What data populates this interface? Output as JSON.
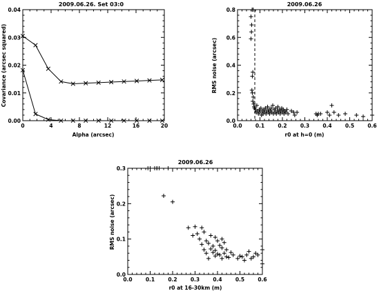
{
  "chart_data": [
    {
      "type": "line",
      "title": "2009.06.26. Set 03:0",
      "xlabel": "Alpha (arcsec)",
      "ylabel": "Covariance (arcsec squared)",
      "xlim": [
        0,
        20
      ],
      "ylim": [
        0,
        0.04
      ],
      "xticks": [
        "0",
        "4",
        "8",
        "12",
        "16",
        "20"
      ],
      "yticks": [
        "0.00",
        "0.01",
        "0.02",
        "0.03",
        "0.04"
      ],
      "marker": "x",
      "series": [
        {
          "x": [
            0,
            1.8,
            3.6,
            5.4,
            7.1,
            8.9,
            10.7,
            12.5,
            14.3,
            16.1,
            17.9,
            19.7
          ],
          "values": [
            0.0305,
            0.0272,
            0.0187,
            0.0141,
            0.0133,
            0.0135,
            0.0137,
            0.0139,
            0.0141,
            0.0143,
            0.0145,
            0.0147
          ]
        },
        {
          "x": [
            0,
            1.8,
            3.6,
            5.4,
            7.1,
            8.9,
            10.7,
            12.5,
            14.3,
            16.1,
            17.9,
            19.7
          ],
          "values": [
            0.0182,
            0.0024,
            0.0004,
            0.0,
            0.0,
            0.0,
            0.0,
            0.0,
            0.0,
            0.0,
            0.0,
            0.0
          ]
        }
      ]
    },
    {
      "type": "scatter",
      "title": "2009.06.26",
      "xlabel": "r0 at h=0 (m)",
      "ylabel": "RMS noise (arcsec)",
      "xlim": [
        0,
        0.6
      ],
      "ylim": [
        0,
        0.8
      ],
      "xticks": [
        "0.0",
        "0.1",
        "0.2",
        "0.3",
        "0.4",
        "0.5",
        "0.6"
      ],
      "yticks": [
        "0.0",
        "0.2",
        "0.4",
        "0.6",
        "0.8"
      ],
      "marker": "+",
      "vline": 0.077,
      "points": [
        [
          0.065,
          0.8
        ],
        [
          0.07,
          0.8
        ],
        [
          0.06,
          0.75
        ],
        [
          0.063,
          0.69
        ],
        [
          0.062,
          0.64
        ],
        [
          0.06,
          0.59
        ],
        [
          0.068,
          0.35
        ],
        [
          0.066,
          0.32
        ],
        [
          0.064,
          0.22
        ],
        [
          0.066,
          0.2
        ],
        [
          0.07,
          0.17
        ],
        [
          0.068,
          0.14
        ],
        [
          0.072,
          0.12
        ],
        [
          0.074,
          0.1
        ],
        [
          0.076,
          0.09
        ],
        [
          0.08,
          0.08
        ],
        [
          0.083,
          0.06
        ],
        [
          0.086,
          0.11
        ],
        [
          0.09,
          0.07
        ],
        [
          0.093,
          0.05
        ],
        [
          0.097,
          0.08
        ],
        [
          0.1,
          0.06
        ],
        [
          0.104,
          0.09
        ],
        [
          0.107,
          0.04
        ],
        [
          0.11,
          0.07
        ],
        [
          0.114,
          0.05
        ],
        [
          0.117,
          0.08
        ],
        [
          0.12,
          0.06
        ],
        [
          0.124,
          0.09
        ],
        [
          0.127,
          0.05
        ],
        [
          0.13,
          0.07
        ],
        [
          0.134,
          0.1
        ],
        [
          0.137,
          0.06
        ],
        [
          0.14,
          0.08
        ],
        [
          0.143,
          0.05
        ],
        [
          0.147,
          0.07
        ],
        [
          0.15,
          0.09
        ],
        [
          0.153,
          0.06
        ],
        [
          0.157,
          0.11
        ],
        [
          0.16,
          0.05
        ],
        [
          0.163,
          0.08
        ],
        [
          0.167,
          0.06
        ],
        [
          0.17,
          0.09
        ],
        [
          0.173,
          0.05
        ],
        [
          0.177,
          0.07
        ],
        [
          0.18,
          0.1
        ],
        [
          0.183,
          0.06
        ],
        [
          0.187,
          0.08
        ],
        [
          0.19,
          0.05
        ],
        [
          0.193,
          0.07
        ],
        [
          0.197,
          0.09
        ],
        [
          0.2,
          0.06
        ],
        [
          0.204,
          0.08
        ],
        [
          0.207,
          0.05
        ],
        [
          0.21,
          0.07
        ],
        [
          0.215,
          0.06
        ],
        [
          0.22,
          0.08
        ],
        [
          0.225,
          0.05
        ],
        [
          0.24,
          0.07
        ],
        [
          0.25,
          0.06
        ],
        [
          0.255,
          0.04
        ],
        [
          0.265,
          0.06
        ],
        [
          0.35,
          0.05
        ],
        [
          0.355,
          0.04
        ],
        [
          0.36,
          0.05
        ],
        [
          0.37,
          0.05
        ],
        [
          0.4,
          0.06
        ],
        [
          0.41,
          0.04
        ],
        [
          0.42,
          0.11
        ],
        [
          0.43,
          0.06
        ],
        [
          0.45,
          0.04
        ],
        [
          0.48,
          0.05
        ],
        [
          0.53,
          0.04
        ],
        [
          0.56,
          0.03
        ],
        [
          0.6,
          0.04
        ]
      ]
    },
    {
      "type": "scatter",
      "title": "2009.06.26",
      "xlabel": "r0 at 16-30km (m)",
      "ylabel": "RMS noise (arcsec)",
      "xlim": [
        0,
        0.6
      ],
      "ylim": [
        0,
        0.3
      ],
      "xticks": [
        "0.0",
        "0.1",
        "0.2",
        "0.3",
        "0.4",
        "0.5",
        "0.6"
      ],
      "yticks": [
        "0.0",
        "0.1",
        "0.2",
        "0.3"
      ],
      "marker": "+",
      "points": [
        [
          0.09,
          0.3
        ],
        [
          0.1,
          0.3
        ],
        [
          0.12,
          0.3
        ],
        [
          0.13,
          0.3
        ],
        [
          0.13,
          0.3
        ],
        [
          0.14,
          0.3
        ],
        [
          0.18,
          0.3
        ],
        [
          0.16,
          0.222
        ],
        [
          0.2,
          0.205
        ],
        [
          0.27,
          0.132
        ],
        [
          0.3,
          0.135
        ],
        [
          0.33,
          0.132
        ],
        [
          0.29,
          0.11
        ],
        [
          0.31,
          0.115
        ],
        [
          0.34,
          0.12
        ],
        [
          0.32,
          0.1
        ],
        [
          0.35,
          0.095
        ],
        [
          0.37,
          0.11
        ],
        [
          0.39,
          0.105
        ],
        [
          0.4,
          0.095
        ],
        [
          0.42,
          0.1
        ],
        [
          0.33,
          0.085
        ],
        [
          0.36,
          0.088
        ],
        [
          0.38,
          0.08
        ],
        [
          0.41,
          0.082
        ],
        [
          0.43,
          0.09
        ],
        [
          0.34,
          0.07
        ],
        [
          0.37,
          0.072
        ],
        [
          0.39,
          0.068
        ],
        [
          0.42,
          0.075
        ],
        [
          0.44,
          0.07
        ],
        [
          0.35,
          0.06
        ],
        [
          0.38,
          0.062
        ],
        [
          0.4,
          0.058
        ],
        [
          0.43,
          0.06
        ],
        [
          0.46,
          0.062
        ],
        [
          0.39,
          0.052
        ],
        [
          0.41,
          0.055
        ],
        [
          0.44,
          0.05
        ],
        [
          0.47,
          0.055
        ],
        [
          0.5,
          0.052
        ],
        [
          0.42,
          0.045
        ],
        [
          0.45,
          0.048
        ],
        [
          0.49,
          0.045
        ],
        [
          0.51,
          0.05
        ],
        [
          0.53,
          0.055
        ],
        [
          0.52,
          0.04
        ],
        [
          0.55,
          0.045
        ],
        [
          0.57,
          0.06
        ],
        [
          0.56,
          0.05
        ],
        [
          0.58,
          0.055
        ],
        [
          0.6,
          0.07
        ],
        [
          0.6,
          0.03
        ],
        [
          0.54,
          0.065
        ],
        [
          0.36,
          0.045
        ]
      ]
    }
  ]
}
